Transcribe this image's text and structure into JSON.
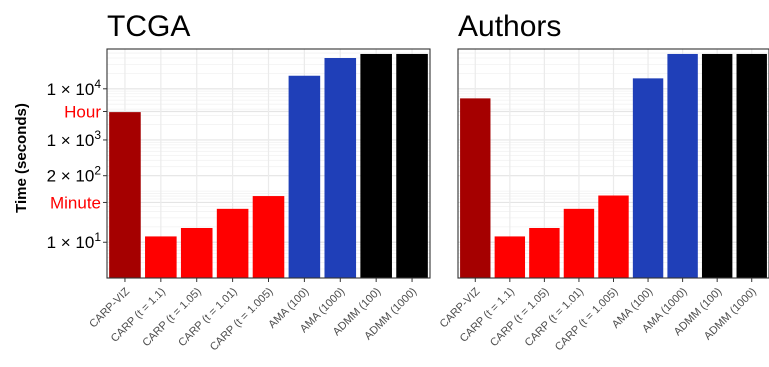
{
  "chart_data": {
    "type": "bar",
    "ylabel": "Time (seconds)",
    "yscale": "log10",
    "ylim": [
      2,
      60000
    ],
    "grid": true,
    "legend": "none",
    "categories": [
      "CARP-VIZ",
      "CARP (t = 1.1)",
      "CARP (t = 1.05)",
      "CARP (t = 1.01)",
      "CARP (t = 1.005)",
      "AMA (100)",
      "AMA (1000)",
      "ADMM (100)",
      "ADMM (1000)"
    ],
    "bar_colors": [
      "#a50000",
      "#ff0000",
      "#ff0000",
      "#ff0000",
      "#ff0000",
      "#1f3fb8",
      "#1f3fb8",
      "#000000",
      "#000000"
    ],
    "y_ticks": [
      {
        "value": 10,
        "label": "1 × 10",
        "exp": "1"
      },
      {
        "value": 60,
        "label": "Minute",
        "highlight": true
      },
      {
        "value": 200,
        "label": "2 × 10",
        "exp": "2"
      },
      {
        "value": 1000,
        "label": "1 × 10",
        "exp": "3"
      },
      {
        "value": 3600,
        "label": "Hour",
        "highlight": true
      },
      {
        "value": 10000,
        "label": "1 × 10",
        "exp": "4"
      }
    ],
    "panels": [
      {
        "title": "TCGA",
        "values": [
          3500,
          13,
          19,
          45,
          80,
          18000,
          40000,
          48000,
          48000
        ]
      },
      {
        "title": "Authors",
        "values": [
          6500,
          13,
          19,
          45,
          82,
          16000,
          48000,
          48000,
          48000
        ]
      }
    ]
  }
}
